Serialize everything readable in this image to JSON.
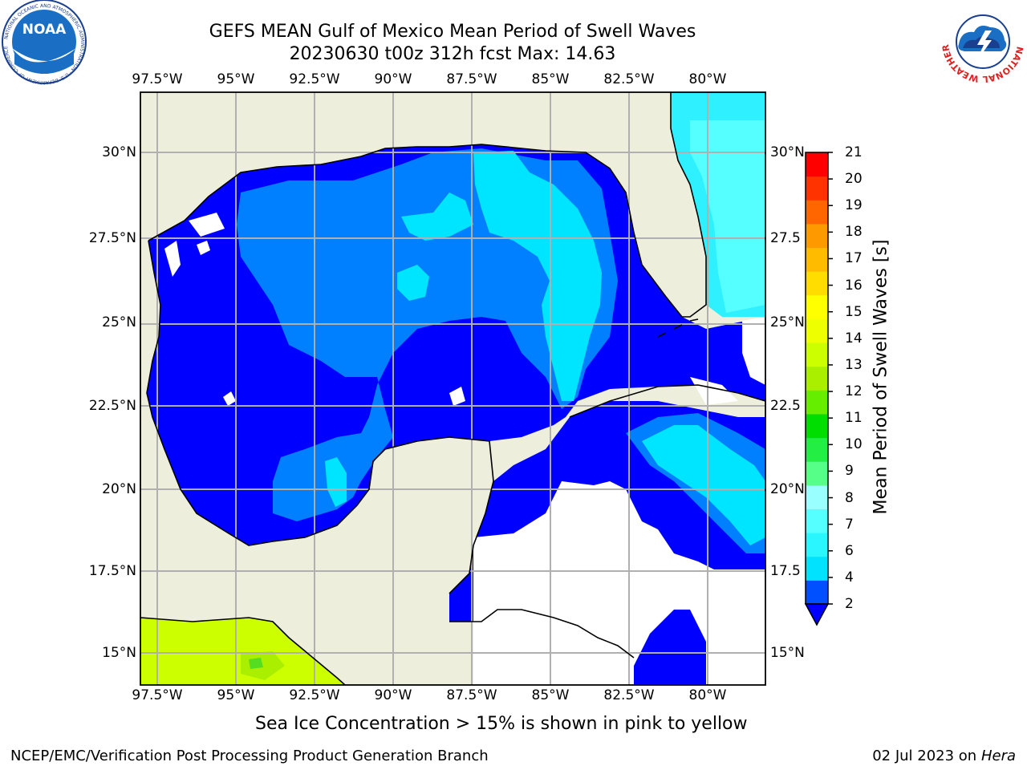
{
  "title": {
    "line1": "GEFS MEAN Gulf of Mexico Mean Period of Swell Waves",
    "line2": "20230630 t00z 312h fcst   Max: 14.63"
  },
  "map": {
    "projection": "lat-lon",
    "lon_range": [
      -98,
      -78
    ],
    "lat_range": [
      14,
      32
    ],
    "lon_ticks": [
      "97.5°W",
      "95°W",
      "92.5°W",
      "90°W",
      "87.5°W",
      "85°W",
      "82.5°W",
      "80°W"
    ],
    "lat_ticks_left": [
      "30°N",
      "27.5°N",
      "25°N",
      "22.5°N",
      "20°N",
      "17.5°N",
      "15°N"
    ],
    "lat_ticks_right": [
      "30°N",
      "27.5",
      "25°N",
      "22.5",
      "20°N",
      "17.5",
      "15°N"
    ],
    "gridlines": true,
    "land_color": "#eeeedd",
    "no_data_color": "#ffffff"
  },
  "colorbar": {
    "label": "Mean Period of Swell Waves [s]",
    "ticks": [
      "2",
      "4",
      "6",
      "7",
      "8",
      "9",
      "10",
      "11",
      "12",
      "13",
      "14",
      "15",
      "16",
      "17",
      "18",
      "19",
      "20",
      "21"
    ],
    "colors": [
      "#0050ff",
      "#00e2ff",
      "#2af6ff",
      "#55ffff",
      "#99ffff",
      "#55ff88",
      "#22ee44",
      "#00dd00",
      "#66ee00",
      "#aaee00",
      "#ccff00",
      "#eeff00",
      "#ffff00",
      "#ffdd00",
      "#ffbb00",
      "#ff9900",
      "#ff6600",
      "#ff3300",
      "#ff0000"
    ],
    "extend_min_color": "#0000ff"
  },
  "footer": {
    "note": "Sea Ice Concentration > 15% is shown in pink to yellow",
    "credit": "NCEP/EMC/Verification Post Processing Product Generation Branch",
    "date": "02 Jul 2023 on",
    "machine": "Hera"
  },
  "logos": {
    "noaa": {
      "text": "NOAA",
      "ring_text": "NATIONAL OCEANIC AND ATMOSPHERIC ADMINISTRATION · U.S. DEPARTMENT OF COMMERCE"
    },
    "nws": {
      "ring_text": "NATIONAL WEATHER SERVICE"
    }
  }
}
